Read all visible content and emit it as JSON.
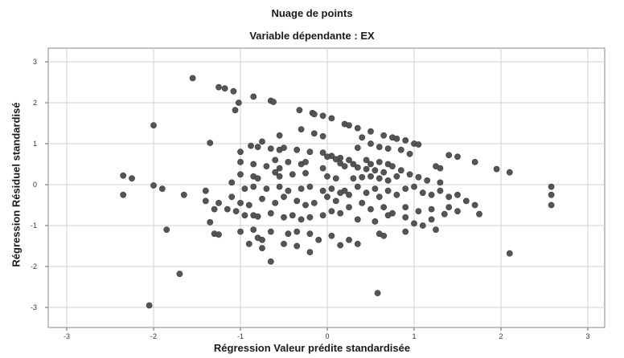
{
  "chart_data": {
    "type": "scatter",
    "title": "Nuage de points",
    "subtitle": "Variable dépendante : EX",
    "xlabel": "Régression Valeur prédite standardisée",
    "ylabel": "Régression Résiduel standardisé",
    "xlim": [
      -3.2,
      3.2
    ],
    "ylim": [
      -3.3,
      3.3
    ],
    "xticks": [
      "-3",
      "-2",
      "-1",
      "0",
      "1",
      "2",
      "3"
    ],
    "yticks": [
      "-3",
      "-2",
      "-1",
      "0",
      "1",
      "2",
      "3"
    ],
    "grid": true,
    "point_color": "#555555",
    "points": [
      [
        -1.55,
        2.6
      ],
      [
        -1.25,
        2.38
      ],
      [
        -1.18,
        2.35
      ],
      [
        -1.08,
        2.28
      ],
      [
        -1.02,
        2.0
      ],
      [
        -1.06,
        1.82
      ],
      [
        -0.85,
        2.15
      ],
      [
        -0.65,
        2.05
      ],
      [
        -0.62,
        2.02
      ],
      [
        -0.32,
        1.82
      ],
      [
        -0.17,
        1.75
      ],
      [
        -0.15,
        1.72
      ],
      [
        -0.05,
        1.68
      ],
      [
        0.05,
        1.62
      ],
      [
        0.2,
        1.48
      ],
      [
        0.25,
        1.45
      ],
      [
        0.35,
        1.38
      ],
      [
        0.5,
        1.3
      ],
      [
        0.65,
        1.2
      ],
      [
        0.75,
        1.15
      ],
      [
        0.8,
        1.12
      ],
      [
        0.9,
        1.08
      ],
      [
        1.0,
        1.0
      ],
      [
        1.05,
        0.98
      ],
      [
        -2.0,
        1.45
      ],
      [
        -1.35,
        1.02
      ],
      [
        -0.3,
        1.35
      ],
      [
        -0.15,
        1.25
      ],
      [
        -0.05,
        1.18
      ],
      [
        -0.55,
        1.2
      ],
      [
        -0.75,
        1.05
      ],
      [
        0.4,
        1.15
      ],
      [
        0.5,
        1.0
      ],
      [
        0.35,
        0.9
      ],
      [
        0.6,
        0.92
      ],
      [
        0.7,
        0.88
      ],
      [
        0.85,
        0.85
      ],
      [
        0.95,
        0.75
      ],
      [
        -1.0,
        0.8
      ],
      [
        -0.88,
        0.95
      ],
      [
        -0.8,
        0.92
      ],
      [
        -0.65,
        0.88
      ],
      [
        -0.55,
        0.85
      ],
      [
        -0.5,
        0.9
      ],
      [
        -0.35,
        0.85
      ],
      [
        -0.2,
        0.8
      ],
      [
        -0.05,
        0.78
      ],
      [
        0.05,
        0.7
      ],
      [
        0.15,
        0.65
      ],
      [
        0.25,
        0.6
      ],
      [
        0.45,
        0.6
      ],
      [
        0.5,
        0.5
      ],
      [
        0.6,
        0.55
      ],
      [
        0.7,
        0.5
      ],
      [
        0.75,
        0.45
      ],
      [
        0.85,
        0.35
      ],
      [
        -1.0,
        0.55
      ],
      [
        -0.85,
        0.5
      ],
      [
        -0.7,
        0.45
      ],
      [
        -0.55,
        0.4
      ],
      [
        -0.6,
        0.6
      ],
      [
        -0.45,
        0.55
      ],
      [
        -0.3,
        0.5
      ],
      [
        -0.25,
        0.55
      ],
      [
        -0.05,
        0.4
      ],
      [
        0.0,
        0.68
      ],
      [
        0.1,
        0.62
      ],
      [
        0.15,
        0.52
      ],
      [
        0.2,
        0.45
      ],
      [
        0.3,
        0.5
      ],
      [
        0.35,
        0.42
      ],
      [
        0.45,
        0.38
      ],
      [
        0.55,
        0.35
      ],
      [
        0.65,
        0.3
      ],
      [
        1.25,
        0.45
      ],
      [
        1.3,
        0.4
      ],
      [
        1.4,
        0.72
      ],
      [
        1.5,
        0.68
      ],
      [
        1.7,
        0.55
      ],
      [
        1.95,
        0.38
      ],
      [
        2.1,
        0.3
      ],
      [
        -2.35,
        0.22
      ],
      [
        -2.25,
        0.15
      ],
      [
        -1.0,
        0.25
      ],
      [
        -0.85,
        0.2
      ],
      [
        -0.8,
        0.15
      ],
      [
        -0.6,
        0.3
      ],
      [
        -0.55,
        0.2
      ],
      [
        -0.4,
        0.25
      ],
      [
        -0.25,
        0.28
      ],
      [
        0.0,
        0.2
      ],
      [
        0.1,
        0.15
      ],
      [
        0.3,
        0.15
      ],
      [
        0.4,
        0.18
      ],
      [
        0.5,
        0.2
      ],
      [
        0.6,
        0.15
      ],
      [
        0.7,
        0.1
      ],
      [
        0.8,
        0.2
      ],
      [
        0.95,
        0.25
      ],
      [
        1.05,
        0.18
      ],
      [
        1.15,
        0.1
      ],
      [
        1.3,
        0.05
      ],
      [
        -2.35,
        -0.25
      ],
      [
        -2.0,
        -0.02
      ],
      [
        -1.9,
        -0.1
      ],
      [
        -1.65,
        -0.25
      ],
      [
        -1.4,
        -0.15
      ],
      [
        -1.25,
        -0.45
      ],
      [
        -1.1,
        0.05
      ],
      [
        -0.95,
        -0.1
      ],
      [
        -0.85,
        -0.05
      ],
      [
        -0.7,
        -0.1
      ],
      [
        -0.55,
        -0.05
      ],
      [
        -0.45,
        -0.15
      ],
      [
        -0.3,
        -0.1
      ],
      [
        -0.2,
        -0.05
      ],
      [
        -0.05,
        -0.15
      ],
      [
        0.05,
        -0.1
      ],
      [
        0.15,
        -0.2
      ],
      [
        0.2,
        -0.15
      ],
      [
        0.25,
        -0.25
      ],
      [
        0.35,
        -0.05
      ],
      [
        0.45,
        -0.2
      ],
      [
        0.55,
        -0.1
      ],
      [
        0.6,
        -0.3
      ],
      [
        0.7,
        -0.15
      ],
      [
        0.8,
        -0.25
      ],
      [
        0.9,
        -0.1
      ],
      [
        1.0,
        -0.05
      ],
      [
        1.1,
        -0.2
      ],
      [
        1.2,
        -0.25
      ],
      [
        1.3,
        -0.15
      ],
      [
        1.4,
        -0.3
      ],
      [
        1.5,
        -0.25
      ],
      [
        1.6,
        -0.4
      ],
      [
        1.7,
        -0.5
      ],
      [
        1.75,
        -0.72
      ],
      [
        -1.4,
        -0.4
      ],
      [
        -1.1,
        -0.3
      ],
      [
        -1.0,
        -0.45
      ],
      [
        -0.9,
        -0.5
      ],
      [
        -0.75,
        -0.35
      ],
      [
        -0.6,
        -0.45
      ],
      [
        -0.5,
        -0.3
      ],
      [
        -0.35,
        -0.4
      ],
      [
        -0.25,
        -0.5
      ],
      [
        -0.15,
        -0.45
      ],
      [
        0.0,
        -0.3
      ],
      [
        0.1,
        -0.4
      ],
      [
        0.25,
        -0.55
      ],
      [
        0.4,
        -0.45
      ],
      [
        0.5,
        -0.6
      ],
      [
        0.65,
        -0.55
      ],
      [
        0.75,
        -0.7
      ],
      [
        0.9,
        -0.55
      ],
      [
        1.05,
        -0.65
      ],
      [
        1.2,
        -0.6
      ],
      [
        1.4,
        -0.55
      ],
      [
        1.5,
        -0.65
      ],
      [
        1.35,
        -0.72
      ],
      [
        2.58,
        -0.05
      ],
      [
        2.58,
        -0.25
      ],
      [
        2.58,
        -0.5
      ],
      [
        -1.3,
        -0.6
      ],
      [
        -1.15,
        -0.6
      ],
      [
        -1.05,
        -0.65
      ],
      [
        -0.95,
        -0.75
      ],
      [
        -0.85,
        -0.75
      ],
      [
        -0.8,
        -0.78
      ],
      [
        -0.65,
        -0.7
      ],
      [
        -0.5,
        -0.8
      ],
      [
        -0.4,
        -0.75
      ],
      [
        -0.3,
        -0.85
      ],
      [
        -0.2,
        -0.8
      ],
      [
        -0.05,
        -0.75
      ],
      [
        0.05,
        -0.65
      ],
      [
        0.15,
        -0.7
      ],
      [
        0.35,
        -0.85
      ],
      [
        0.55,
        -0.9
      ],
      [
        0.7,
        -0.75
      ],
      [
        0.9,
        -0.8
      ],
      [
        1.0,
        -0.95
      ],
      [
        1.1,
        -1.0
      ],
      [
        1.25,
        -1.1
      ],
      [
        1.2,
        -0.85
      ],
      [
        -1.85,
        -1.1
      ],
      [
        -1.35,
        -0.92
      ],
      [
        -1.3,
        -1.2
      ],
      [
        -1.25,
        -1.22
      ],
      [
        -1.0,
        -1.15
      ],
      [
        -0.85,
        -1.1
      ],
      [
        -0.8,
        -1.3
      ],
      [
        -0.75,
        -1.35
      ],
      [
        -0.65,
        -1.15
      ],
      [
        -0.45,
        -1.2
      ],
      [
        -0.35,
        -1.15
      ],
      [
        -0.2,
        -1.2
      ],
      [
        -0.1,
        -1.35
      ],
      [
        0.05,
        -1.25
      ],
      [
        0.25,
        -1.35
      ],
      [
        0.6,
        -1.2
      ],
      [
        0.65,
        -1.25
      ],
      [
        0.9,
        -1.15
      ],
      [
        -0.9,
        -1.45
      ],
      [
        -0.75,
        -1.55
      ],
      [
        -0.5,
        -1.45
      ],
      [
        -0.35,
        -1.5
      ],
      [
        -0.2,
        -1.65
      ],
      [
        0.15,
        -1.48
      ],
      [
        0.35,
        -1.45
      ],
      [
        -0.65,
        -1.88
      ],
      [
        -1.7,
        -2.18
      ],
      [
        2.1,
        -1.68
      ],
      [
        -2.05,
        -2.95
      ],
      [
        0.58,
        -2.65
      ]
    ]
  }
}
